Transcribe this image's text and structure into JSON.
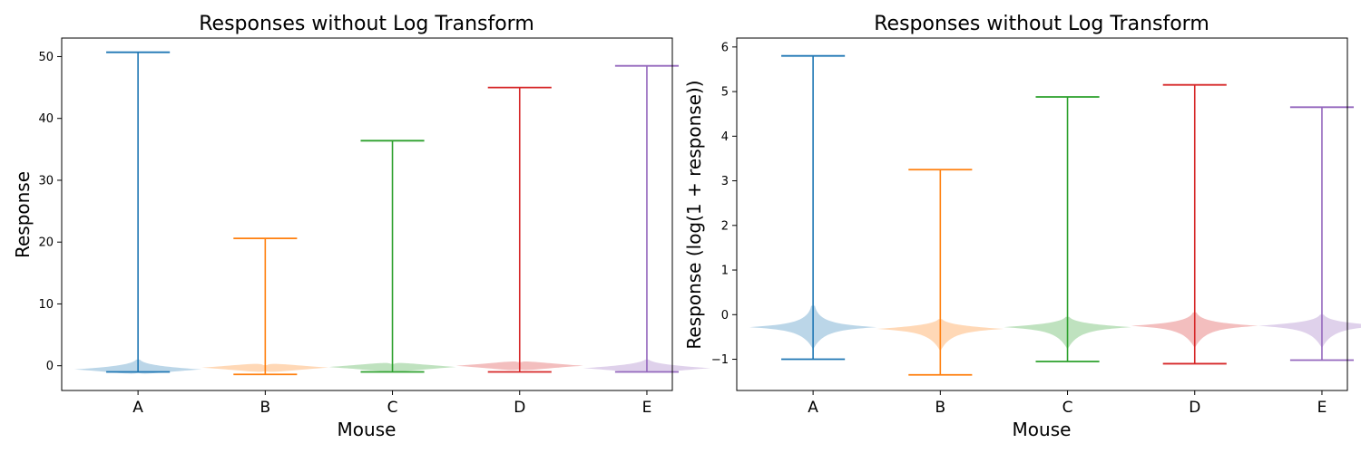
{
  "chart_data": [
    {
      "type": "violin",
      "title": "Responses without Log Transform",
      "xlabel": "Mouse",
      "ylabel": "Response",
      "categories": [
        "A",
        "B",
        "C",
        "D",
        "E"
      ],
      "ylim": [
        -4,
        53
      ],
      "yticks": [
        0,
        10,
        20,
        30,
        40,
        50
      ],
      "ytick_labels": [
        "0",
        "10",
        "20",
        "30",
        "40",
        "50"
      ],
      "grid": false,
      "series": [
        {
          "category": "A",
          "color": "#1f77b4",
          "min": -1.0,
          "max": 50.7,
          "center": -0.6,
          "peak": 1.0,
          "spread": 0.5
        },
        {
          "category": "B",
          "color": "#ff7f0e",
          "min": -1.4,
          "max": 20.6,
          "center": -0.3,
          "peak": 0.1,
          "spread": 0.5
        },
        {
          "category": "C",
          "color": "#2ca02c",
          "min": -1.0,
          "max": 36.4,
          "center": -0.2,
          "peak": 0.3,
          "spread": 0.5
        },
        {
          "category": "D",
          "color": "#d62728",
          "min": -1.0,
          "max": 45.0,
          "center": 0.0,
          "peak": 0.6,
          "spread": 0.5
        },
        {
          "category": "E",
          "color": "#9467bd",
          "min": -1.0,
          "max": 48.5,
          "center": -0.4,
          "peak": 1.0,
          "spread": 0.5
        }
      ]
    },
    {
      "type": "violin",
      "title": "Responses without Log Transform",
      "xlabel": "Mouse",
      "ylabel": "Response (log(1 + response))",
      "categories": [
        "A",
        "B",
        "C",
        "D",
        "E"
      ],
      "ylim": [
        -1.7,
        6.2
      ],
      "yticks": [
        -1,
        0,
        1,
        2,
        3,
        4,
        5,
        6
      ],
      "ytick_labels": [
        "−1",
        "0",
        "1",
        "2",
        "3",
        "4",
        "5",
        "6"
      ],
      "grid": false,
      "series": [
        {
          "category": "A",
          "color": "#1f77b4",
          "min": -1.0,
          "max": 5.8,
          "center": -0.28,
          "peak": 0.2,
          "spread": 0.5
        },
        {
          "category": "B",
          "color": "#ff7f0e",
          "min": -1.35,
          "max": 3.25,
          "center": -0.32,
          "peak": -0.1,
          "spread": 0.5
        },
        {
          "category": "C",
          "color": "#2ca02c",
          "min": -1.05,
          "max": 4.88,
          "center": -0.28,
          "peak": -0.05,
          "spread": 0.5
        },
        {
          "category": "D",
          "color": "#d62728",
          "min": -1.1,
          "max": 5.15,
          "center": -0.25,
          "peak": 0.05,
          "spread": 0.5
        },
        {
          "category": "E",
          "color": "#9467bd",
          "min": -1.02,
          "max": 4.65,
          "center": -0.25,
          "peak": 0.0,
          "spread": 0.5
        }
      ]
    }
  ]
}
